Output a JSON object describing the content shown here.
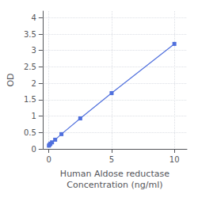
{
  "chart_data": {
    "type": "line",
    "x": [
      0,
      0.0625,
      0.125,
      0.25,
      0.5,
      1,
      2.5,
      5,
      10
    ],
    "values": [
      0.1,
      0.13,
      0.16,
      0.2,
      0.28,
      0.45,
      0.93,
      1.7,
      3.2
    ],
    "xlabel": "Human Aldose reductase\nConcentration (ng/ml)",
    "ylabel": "OD",
    "xlim": [
      -0.5,
      11
    ],
    "xticks": [
      0,
      5,
      10
    ],
    "ylim": [
      0,
      4.2
    ],
    "yticks": [
      0,
      0.5,
      1,
      1.5,
      2,
      2.5,
      3,
      3.5,
      4
    ],
    "marker": "square",
    "grid": true
  }
}
